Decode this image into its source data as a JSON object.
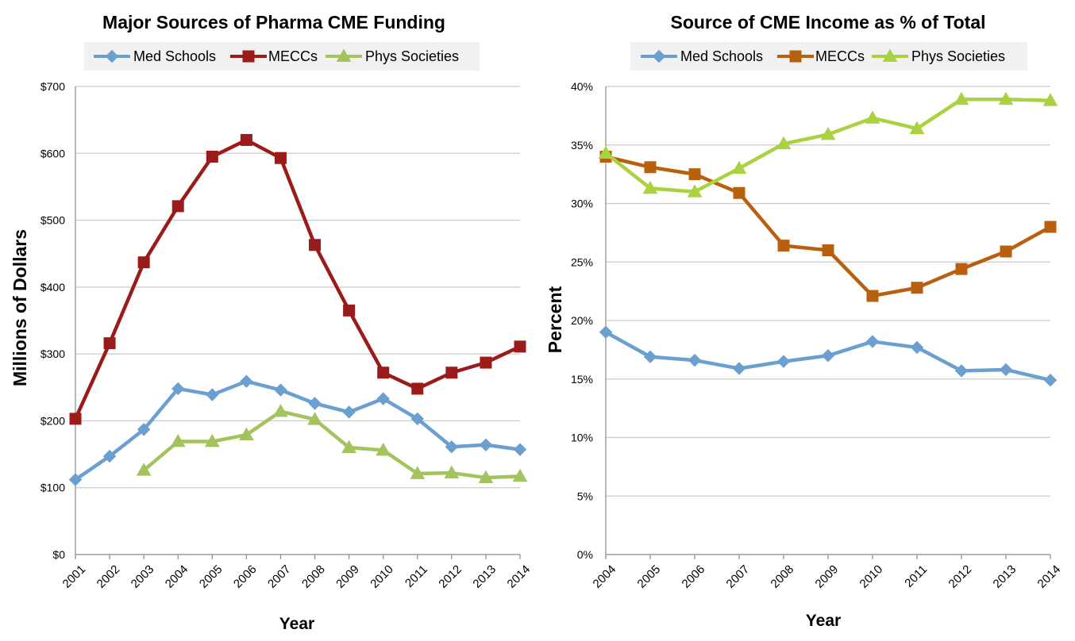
{
  "chart_data": [
    {
      "type": "line",
      "title": "Major Sources of Pharma CME Funding",
      "xlabel": "Year",
      "ylabel": "Millions of Dollars",
      "x": [
        "2001",
        "2002",
        "2003",
        "2004",
        "2005",
        "2006",
        "2007",
        "2008",
        "2009",
        "2010",
        "2011",
        "2012",
        "2013",
        "2014"
      ],
      "ylim": [
        0,
        700
      ],
      "yticks": [
        0,
        100,
        200,
        300,
        400,
        500,
        600,
        700
      ],
      "ytick_labels": [
        "$0",
        "$100",
        "$200",
        "$300",
        "$400",
        "$500",
        "$600",
        "$700"
      ],
      "grid": true,
      "legend": "top",
      "series": [
        {
          "name": "Med Schools",
          "color": "#6a9fd0",
          "marker": "diamond",
          "values": [
            112,
            147,
            187,
            248,
            239,
            259,
            246,
            226,
            213,
            233,
            203,
            161,
            164,
            157
          ]
        },
        {
          "name": "MECCs",
          "color": "#9b1b1b",
          "marker": "square",
          "values": [
            203,
            316,
            437,
            521,
            595,
            620,
            593,
            463,
            365,
            272,
            248,
            272,
            287,
            311
          ]
        },
        {
          "name": "Phys Societies",
          "color": "#a3c35c",
          "marker": "triangle",
          "values": [
            null,
            null,
            126,
            169,
            169,
            179,
            214,
            202,
            160,
            156,
            121,
            122,
            115,
            117
          ]
        }
      ]
    },
    {
      "type": "line",
      "title": "Source of CME Income as % of Total",
      "xlabel": "Year",
      "ylabel": "Percent",
      "x": [
        "2004",
        "2005",
        "2006",
        "2007",
        "2008",
        "2009",
        "2010",
        "2011",
        "2012",
        "2013",
        "2014"
      ],
      "ylim": [
        0,
        40
      ],
      "yticks": [
        0,
        5,
        10,
        15,
        20,
        25,
        30,
        35,
        40
      ],
      "ytick_labels": [
        "0%",
        "5%",
        "10%",
        "15%",
        "20%",
        "25%",
        "30%",
        "35%",
        "40%"
      ],
      "grid": true,
      "legend": "top",
      "series": [
        {
          "name": "Med Schools",
          "color": "#6a9fd0",
          "marker": "diamond",
          "values": [
            19.0,
            16.9,
            16.6,
            15.9,
            16.5,
            17.0,
            18.2,
            17.7,
            15.7,
            15.8,
            14.9
          ]
        },
        {
          "name": "MECCs",
          "color": "#b8600f",
          "marker": "square",
          "values": [
            34.0,
            33.1,
            32.5,
            30.9,
            26.4,
            26.0,
            22.1,
            22.8,
            24.4,
            25.9,
            28.0
          ]
        },
        {
          "name": "Phys Societies",
          "color": "#a9d140",
          "marker": "triangle",
          "values": [
            34.3,
            31.3,
            31.0,
            33.0,
            35.1,
            35.9,
            37.3,
            36.4,
            38.9,
            38.9,
            38.8
          ]
        }
      ]
    }
  ]
}
